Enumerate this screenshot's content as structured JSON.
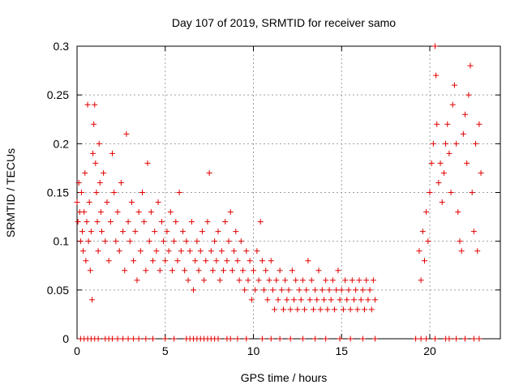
{
  "chart_data": {
    "type": "scatter",
    "title": "Day 107 of 2019, SRMTID for receiver samo",
    "xlabel": "GPS time / hours",
    "ylabel": "SRMTID / TECUs",
    "xlim": [
      0,
      24
    ],
    "ylim": [
      0,
      0.3
    ],
    "x_ticks": [
      0,
      5,
      10,
      15,
      20
    ],
    "x_tick_labels": [
      "0",
      "5",
      "10",
      "15",
      "20"
    ],
    "y_ticks": [
      0,
      0.05,
      0.1,
      0.15,
      0.2,
      0.25,
      0.3
    ],
    "y_tick_labels": [
      "0",
      "0.05",
      "0.1",
      "0.15",
      "0.2",
      "0.25",
      "0.3"
    ],
    "grid": true,
    "marker": "+",
    "color": "#e00000",
    "series": [
      {
        "name": "SRMTID",
        "points": [
          [
            0.0,
            0.14
          ],
          [
            0.05,
            0.12
          ],
          [
            0.1,
            0.16
          ],
          [
            0.15,
            0.13
          ],
          [
            0.2,
            0.1
          ],
          [
            0.25,
            0.15
          ],
          [
            0.3,
            0.11
          ],
          [
            0.35,
            0.09
          ],
          [
            0.4,
            0.13
          ],
          [
            0.45,
            0.17
          ],
          [
            0.5,
            0.08
          ],
          [
            0.55,
            0.12
          ],
          [
            0.6,
            0.24
          ],
          [
            0.65,
            0.1
          ],
          [
            0.7,
            0.14
          ],
          [
            0.75,
            0.07
          ],
          [
            0.8,
            0.11
          ],
          [
            0.85,
            0.04
          ],
          [
            0.9,
            0.19
          ],
          [
            0.95,
            0.22
          ],
          [
            1.0,
            0.24
          ],
          [
            1.05,
            0.18
          ],
          [
            1.1,
            0.15
          ],
          [
            1.15,
            0.12
          ],
          [
            1.2,
            0.09
          ],
          [
            1.25,
            0.2
          ],
          [
            1.3,
            0.16
          ],
          [
            1.35,
            0.13
          ],
          [
            1.4,
            0.11
          ],
          [
            1.5,
            0.17
          ],
          [
            1.6,
            0.1
          ],
          [
            1.7,
            0.14
          ],
          [
            1.8,
            0.08
          ],
          [
            1.9,
            0.12
          ],
          [
            2.0,
            0.19
          ],
          [
            2.1,
            0.15
          ],
          [
            2.2,
            0.1
          ],
          [
            2.3,
            0.13
          ],
          [
            2.4,
            0.09
          ],
          [
            2.5,
            0.16
          ],
          [
            2.6,
            0.11
          ],
          [
            2.7,
            0.07
          ],
          [
            2.8,
            0.21
          ],
          [
            2.9,
            0.12
          ],
          [
            3.0,
            0.1
          ],
          [
            3.1,
            0.14
          ],
          [
            3.2,
            0.08
          ],
          [
            3.3,
            0.11
          ],
          [
            3.4,
            0.06
          ],
          [
            3.5,
            0.13
          ],
          [
            3.6,
            0.09
          ],
          [
            3.7,
            0.15
          ],
          [
            3.8,
            0.12
          ],
          [
            3.9,
            0.07
          ],
          [
            4.0,
            0.18
          ],
          [
            4.1,
            0.1
          ],
          [
            4.2,
            0.13
          ],
          [
            4.3,
            0.08
          ],
          [
            4.4,
            0.11
          ],
          [
            4.5,
            0.09
          ],
          [
            4.6,
            0.14
          ],
          [
            4.7,
            0.07
          ],
          [
            4.8,
            0.12
          ],
          [
            4.9,
            0.1
          ],
          [
            5.0,
            0.08
          ],
          [
            5.1,
            0.11
          ],
          [
            5.2,
            0.09
          ],
          [
            5.3,
            0.13
          ],
          [
            5.4,
            0.07
          ],
          [
            5.5,
            0.1
          ],
          [
            5.6,
            0.12
          ],
          [
            5.7,
            0.08
          ],
          [
            5.8,
            0.15
          ],
          [
            5.9,
            0.09
          ],
          [
            6.0,
            0.11
          ],
          [
            6.1,
            0.07
          ],
          [
            6.2,
            0.1
          ],
          [
            6.3,
            0.06
          ],
          [
            6.4,
            0.09
          ],
          [
            6.5,
            0.12
          ],
          [
            6.6,
            0.05
          ],
          [
            6.7,
            0.08
          ],
          [
            6.8,
            0.1
          ],
          [
            6.9,
            0.07
          ],
          [
            7.0,
            0.09
          ],
          [
            7.1,
            0.11
          ],
          [
            7.2,
            0.06
          ],
          [
            7.3,
            0.08
          ],
          [
            7.4,
            0.12
          ],
          [
            7.5,
            0.17
          ],
          [
            7.6,
            0.09
          ],
          [
            7.7,
            0.07
          ],
          [
            7.8,
            0.1
          ],
          [
            7.9,
            0.08
          ],
          [
            8.0,
            0.11
          ],
          [
            8.1,
            0.06
          ],
          [
            8.2,
            0.09
          ],
          [
            8.3,
            0.07
          ],
          [
            8.4,
            0.12
          ],
          [
            8.5,
            0.08
          ],
          [
            8.6,
            0.1
          ],
          [
            8.7,
            0.13
          ],
          [
            8.8,
            0.07
          ],
          [
            8.9,
            0.09
          ],
          [
            9.0,
            0.11
          ],
          [
            9.1,
            0.08
          ],
          [
            9.2,
            0.06
          ],
          [
            9.3,
            0.1
          ],
          [
            9.4,
            0.07
          ],
          [
            9.5,
            0.05
          ],
          [
            9.6,
            0.09
          ],
          [
            9.7,
            0.06
          ],
          [
            9.8,
            0.08
          ],
          [
            9.9,
            0.04
          ],
          [
            10.0,
            0.07
          ],
          [
            10.1,
            0.05
          ],
          [
            10.2,
            0.09
          ],
          [
            10.3,
            0.06
          ],
          [
            10.4,
            0.12
          ],
          [
            10.5,
            0.08
          ],
          [
            10.6,
            0.05
          ],
          [
            10.7,
            0.07
          ],
          [
            10.8,
            0.04
          ],
          [
            10.9,
            0.06
          ],
          [
            11.0,
            0.08
          ],
          [
            11.1,
            0.05
          ],
          [
            11.2,
            0.03
          ],
          [
            11.3,
            0.06
          ],
          [
            11.4,
            0.04
          ],
          [
            11.5,
            0.07
          ],
          [
            11.6,
            0.05
          ],
          [
            11.7,
            0.03
          ],
          [
            11.8,
            0.06
          ],
          [
            11.9,
            0.04
          ],
          [
            12.0,
            0.05
          ],
          [
            12.1,
            0.03
          ],
          [
            12.2,
            0.07
          ],
          [
            12.3,
            0.04
          ],
          [
            12.4,
            0.06
          ],
          [
            12.5,
            0.03
          ],
          [
            12.6,
            0.05
          ],
          [
            12.7,
            0.04
          ],
          [
            12.8,
            0.06
          ],
          [
            12.9,
            0.03
          ],
          [
            13.0,
            0.05
          ],
          [
            13.1,
            0.08
          ],
          [
            13.2,
            0.04
          ],
          [
            13.3,
            0.06
          ],
          [
            13.4,
            0.03
          ],
          [
            13.5,
            0.05
          ],
          [
            13.6,
            0.04
          ],
          [
            13.7,
            0.07
          ],
          [
            13.8,
            0.03
          ],
          [
            13.9,
            0.05
          ],
          [
            14.0,
            0.04
          ],
          [
            14.1,
            0.06
          ],
          [
            14.2,
            0.03
          ],
          [
            14.3,
            0.05
          ],
          [
            14.4,
            0.04
          ],
          [
            14.5,
            0.06
          ],
          [
            14.6,
            0.03
          ],
          [
            14.7,
            0.05
          ],
          [
            14.8,
            0.07
          ],
          [
            14.9,
            0.04
          ],
          [
            15.0,
            0.05
          ],
          [
            15.1,
            0.03
          ],
          [
            15.2,
            0.06
          ],
          [
            15.3,
            0.04
          ],
          [
            15.4,
            0.05
          ],
          [
            15.5,
            0.03
          ],
          [
            15.6,
            0.06
          ],
          [
            15.7,
            0.04
          ],
          [
            15.8,
            0.05
          ],
          [
            15.9,
            0.03
          ],
          [
            16.0,
            0.06
          ],
          [
            16.1,
            0.04
          ],
          [
            16.2,
            0.05
          ],
          [
            16.3,
            0.03
          ],
          [
            16.4,
            0.06
          ],
          [
            16.5,
            0.04
          ],
          [
            16.6,
            0.05
          ],
          [
            16.7,
            0.03
          ],
          [
            16.8,
            0.06
          ],
          [
            16.9,
            0.04
          ],
          [
            19.4,
            0.09
          ],
          [
            19.5,
            0.06
          ],
          [
            19.6,
            0.11
          ],
          [
            19.7,
            0.08
          ],
          [
            19.8,
            0.13
          ],
          [
            19.9,
            0.1
          ],
          [
            20.0,
            0.15
          ],
          [
            20.1,
            0.18
          ],
          [
            20.2,
            0.2
          ],
          [
            20.3,
            0.3
          ],
          [
            20.35,
            0.27
          ],
          [
            20.4,
            0.22
          ],
          [
            20.5,
            0.16
          ],
          [
            20.6,
            0.18
          ],
          [
            20.7,
            0.14
          ],
          [
            20.8,
            0.17
          ],
          [
            20.9,
            0.2
          ],
          [
            21.0,
            0.22
          ],
          [
            21.1,
            0.19
          ],
          [
            21.2,
            0.15
          ],
          [
            21.3,
            0.24
          ],
          [
            21.4,
            0.26
          ],
          [
            21.5,
            0.2
          ],
          [
            21.6,
            0.13
          ],
          [
            21.7,
            0.1
          ],
          [
            21.8,
            0.09
          ],
          [
            21.9,
            0.21
          ],
          [
            22.0,
            0.23
          ],
          [
            22.1,
            0.18
          ],
          [
            22.2,
            0.25
          ],
          [
            22.3,
            0.28
          ],
          [
            22.4,
            0.15
          ],
          [
            22.5,
            0.11
          ],
          [
            22.6,
            0.2
          ],
          [
            22.7,
            0.09
          ],
          [
            22.8,
            0.22
          ],
          [
            22.9,
            0.17
          ]
        ]
      }
    ],
    "zero_band": [
      [
        0.2,
        0
      ],
      [
        0.4,
        0
      ],
      [
        0.6,
        0
      ],
      [
        0.8,
        0
      ],
      [
        1.0,
        0
      ],
      [
        1.2,
        0
      ],
      [
        1.6,
        0
      ],
      [
        1.8,
        0
      ],
      [
        2.0,
        0
      ],
      [
        2.3,
        0
      ],
      [
        2.6,
        0
      ],
      [
        2.9,
        0
      ],
      [
        3.2,
        0
      ],
      [
        3.5,
        0
      ],
      [
        3.9,
        0
      ],
      [
        4.3,
        0
      ],
      [
        5.0,
        0
      ],
      [
        5.5,
        0
      ],
      [
        6.2,
        0
      ],
      [
        6.4,
        0
      ],
      [
        6.6,
        0
      ],
      [
        6.8,
        0
      ],
      [
        7.0,
        0
      ],
      [
        7.2,
        0
      ],
      [
        7.4,
        0
      ],
      [
        7.6,
        0
      ],
      [
        7.8,
        0
      ],
      [
        8.0,
        0
      ],
      [
        8.5,
        0
      ],
      [
        8.7,
        0
      ],
      [
        9.1,
        0
      ],
      [
        9.6,
        0
      ],
      [
        10.5,
        0
      ],
      [
        11.0,
        0
      ],
      [
        11.5,
        0
      ],
      [
        12.1,
        0
      ],
      [
        12.8,
        0
      ],
      [
        13.5,
        0
      ],
      [
        14.1,
        0
      ],
      [
        14.9,
        0
      ],
      [
        15.5,
        0
      ],
      [
        16.2,
        0
      ],
      [
        16.9,
        0
      ],
      [
        19.2,
        0
      ],
      [
        19.5,
        0
      ],
      [
        19.8,
        0
      ],
      [
        20.3,
        0
      ],
      [
        20.9,
        0
      ],
      [
        21.1,
        0
      ],
      [
        21.5,
        0
      ],
      [
        22.0,
        0
      ],
      [
        22.5,
        0
      ],
      [
        22.8,
        0
      ]
    ]
  }
}
